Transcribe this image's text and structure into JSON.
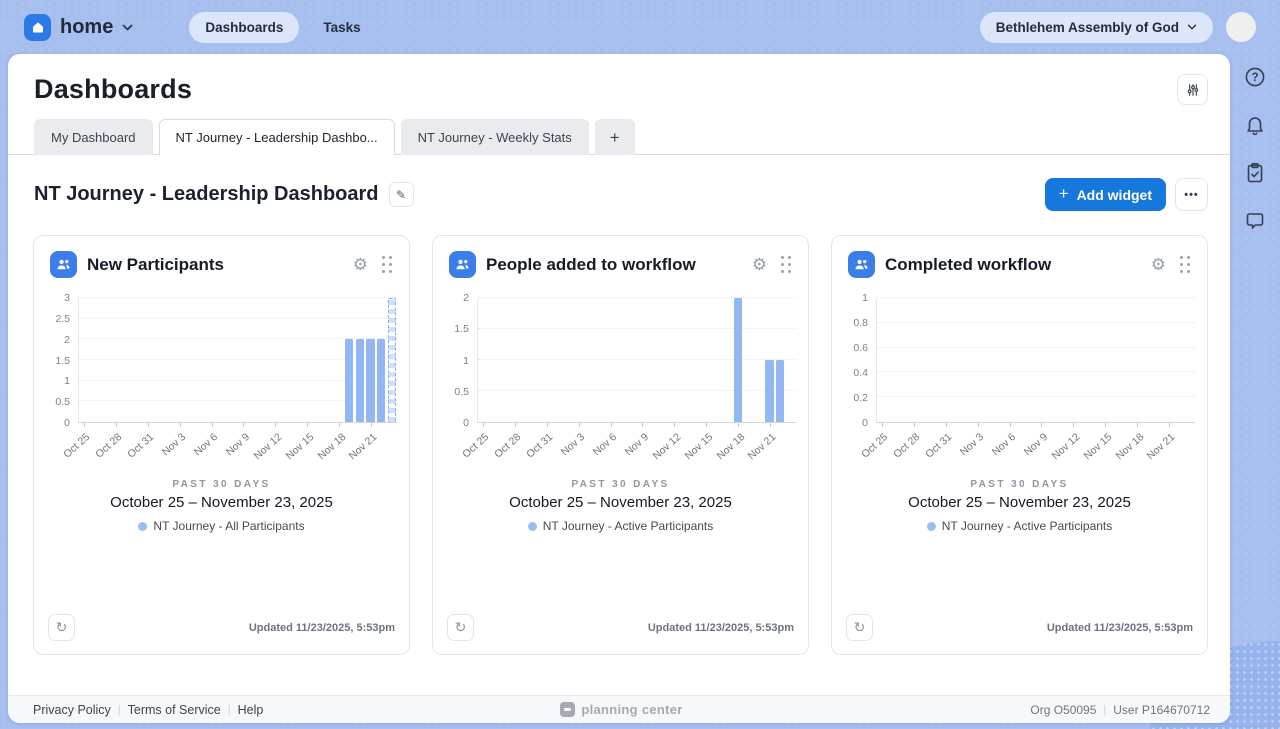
{
  "topbar": {
    "app_name": "home",
    "nav": [
      {
        "label": "Dashboards",
        "active": true
      },
      {
        "label": "Tasks",
        "active": false
      }
    ],
    "org_selector": "Bethlehem Assembly of God"
  },
  "header": {
    "title": "Dashboards"
  },
  "tabs": [
    {
      "label": "My Dashboard",
      "active": false
    },
    {
      "label": "NT Journey - Leadership Dashbo...",
      "active": true
    },
    {
      "label": "NT Journey - Weekly Stats",
      "active": false
    }
  ],
  "dashboard": {
    "title": "NT Journey - Leadership Dashboard",
    "add_widget_label": "Add widget"
  },
  "icons": {
    "gear": "⚙",
    "refresh": "↻",
    "edit": "✎",
    "more": "•••",
    "plus_tab": "+",
    "add": "+"
  },
  "widgets": [
    {
      "title": "New Participants",
      "period_label": "PAST 30 DAYS",
      "date_range": "October 25 – November 23, 2025",
      "legend": "NT Journey - All Participants",
      "updated": "Updated 11/23/2025, 5:53pm"
    },
    {
      "title": "People added to workflow",
      "period_label": "PAST 30 DAYS",
      "date_range": "October 25 – November 23, 2025",
      "legend": "NT Journey - Active Participants",
      "updated": "Updated 11/23/2025, 5:53pm"
    },
    {
      "title": "Completed workflow",
      "period_label": "PAST 30 DAYS",
      "date_range": "October 25 – November 23, 2025",
      "legend": "NT Journey - Active Participants",
      "updated": "Updated 11/23/2025, 5:53pm"
    }
  ],
  "chart_data": [
    {
      "type": "bar",
      "title": "New Participants",
      "x_ticks": [
        "Oct 25",
        "Oct 28",
        "Oct 31",
        "Nov 3",
        "Nov 6",
        "Nov 9",
        "Nov 12",
        "Nov 15",
        "Nov 18",
        "Nov 21"
      ],
      "days_total": 30,
      "tick_interval_days": 3,
      "y_ticks": [
        0,
        0.5,
        1,
        1.5,
        2,
        2.5,
        3
      ],
      "ylim": [
        0,
        3
      ],
      "grid": "horizontal-dotted",
      "legend_position": "below",
      "series_name": "NT Journey - All Participants",
      "bar_color": "#93b7f4",
      "bars": [
        {
          "date": "Nov 19",
          "day_index": 25,
          "value": 2
        },
        {
          "date": "Nov 20",
          "day_index": 26,
          "value": 2
        },
        {
          "date": "Nov 21",
          "day_index": 27,
          "value": 2
        },
        {
          "date": "Nov 22",
          "day_index": 28,
          "value": 2
        },
        {
          "date": "Nov 23",
          "day_index": 29,
          "value": 3,
          "in_progress_dashed": true
        }
      ]
    },
    {
      "type": "bar",
      "title": "People added to workflow",
      "x_ticks": [
        "Oct 25",
        "Oct 28",
        "Oct 31",
        "Nov 3",
        "Nov 6",
        "Nov 9",
        "Nov 12",
        "Nov 15",
        "Nov 18",
        "Nov 21"
      ],
      "days_total": 30,
      "tick_interval_days": 3,
      "y_ticks": [
        0,
        0.5,
        1,
        1.5,
        2
      ],
      "ylim": [
        0,
        2
      ],
      "grid": "horizontal-dotted",
      "legend_position": "below",
      "series_name": "NT Journey - Active Participants",
      "bar_color": "#93b7f4",
      "bars": [
        {
          "date": "Nov 18",
          "day_index": 24,
          "value": 2
        },
        {
          "date": "Nov 21",
          "day_index": 27,
          "value": 1
        },
        {
          "date": "Nov 22",
          "day_index": 28,
          "value": 1
        }
      ]
    },
    {
      "type": "bar",
      "title": "Completed workflow",
      "x_ticks": [
        "Oct 25",
        "Oct 28",
        "Oct 31",
        "Nov 3",
        "Nov 6",
        "Nov 9",
        "Nov 12",
        "Nov 15",
        "Nov 18",
        "Nov 21"
      ],
      "days_total": 30,
      "tick_interval_days": 3,
      "y_ticks": [
        0,
        0.2,
        0.4,
        0.6,
        0.8,
        1
      ],
      "ylim": [
        0,
        1
      ],
      "grid": "horizontal-dotted",
      "legend_position": "below",
      "series_name": "NT Journey - Active Participants",
      "bar_color": "#93b7f4",
      "bars": []
    }
  ],
  "footer": {
    "links": [
      "Privacy Policy",
      "Terms of Service",
      "Help"
    ],
    "brand": "planning center",
    "org": "Org O50095",
    "user": "User P164670712"
  },
  "colors": {
    "topbar_bg": "#a7bfee",
    "accent_blue": "#1678dd",
    "widget_icon_bg": "#3b7de9",
    "bar_fill": "#93b7f4",
    "legend_dot": "#9cbdf4"
  }
}
